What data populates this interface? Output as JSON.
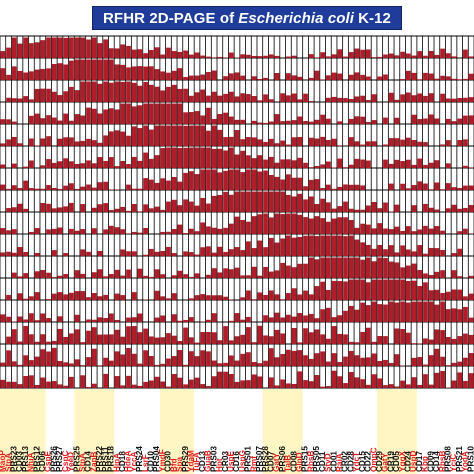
{
  "header": {
    "title_prefix": "RFHR 2D-PAGE of",
    "title_species": "Escherichia coli",
    "title_suffix": "K-12"
  },
  "colors": {
    "bar_fill": "#b01c28",
    "cell_background": "#ffffff",
    "frame": "#000000",
    "label_red": "#e01c1c",
    "label_black": "#111111",
    "highlight_yellow": "#fff6c4",
    "title_background": "#1f3c9a",
    "title_text": "#ffffff"
  },
  "chart_data": {
    "type": "bar",
    "layout": "grid of single-bar panels (rows x columns)",
    "rows": 16,
    "ylim": [
      0,
      1
    ],
    "grid": true,
    "columns": [
      {
        "label": "MaoP",
        "color": "red"
      },
      {
        "label": "StpA",
        "color": "red"
      },
      {
        "label": "PRS23",
        "color": "black"
      },
      {
        "label": "CD03",
        "color": "black"
      },
      {
        "label": "PRS13",
        "color": "black"
      },
      {
        "label": "NfuA",
        "color": "red"
      },
      {
        "label": "PRS12",
        "color": "black"
      },
      {
        "label": "CD06",
        "color": "black"
      },
      {
        "label": "CspE",
        "color": "red"
      },
      {
        "label": "PRS26",
        "color": "black"
      },
      {
        "label": "PRS27",
        "color": "black"
      },
      {
        "label": "CspC",
        "color": "red"
      },
      {
        "label": "YeeD",
        "color": "red"
      },
      {
        "label": "PRS25",
        "color": "black"
      },
      {
        "label": "StpA",
        "color": "red"
      },
      {
        "label": "CD14",
        "color": "black"
      },
      {
        "label": "ZapB",
        "color": "red"
      },
      {
        "label": "PRS22",
        "color": "black"
      },
      {
        "label": "PRS11",
        "color": "black"
      },
      {
        "label": "PRS18",
        "color": "black"
      },
      {
        "label": "HipA",
        "color": "red"
      },
      {
        "label": "CD18",
        "color": "black"
      },
      {
        "label": "HdeA",
        "color": "red"
      },
      {
        "label": "YccA",
        "color": "red"
      },
      {
        "label": "PRS24",
        "color": "black"
      },
      {
        "label": "LsrF",
        "color": "red"
      },
      {
        "label": "CD10",
        "color": "black"
      },
      {
        "label": "PRS04",
        "color": "black"
      },
      {
        "label": "YmdF",
        "color": "red"
      },
      {
        "label": "CD30",
        "color": "black"
      },
      {
        "label": "Bfd",
        "color": "red"
      },
      {
        "label": "Spa",
        "color": "red"
      },
      {
        "label": "PRS29",
        "color": "black"
      },
      {
        "label": "YdaM",
        "color": "red"
      },
      {
        "label": "TuFA",
        "color": "red"
      },
      {
        "label": "CD13",
        "color": "black"
      },
      {
        "label": "GuaB",
        "color": "red"
      },
      {
        "label": "PRS03",
        "color": "black"
      },
      {
        "label": "Hpt",
        "color": "red"
      },
      {
        "label": "CR03",
        "color": "black"
      },
      {
        "label": "UspE",
        "color": "red"
      },
      {
        "label": "CD16",
        "color": "black"
      },
      {
        "label": "UspG",
        "color": "red"
      },
      {
        "label": "PRS01",
        "color": "black"
      },
      {
        "label": "Rmf",
        "color": "red"
      },
      {
        "label": "PRS07",
        "color": "black"
      },
      {
        "label": "PRS28",
        "color": "black"
      },
      {
        "label": "CD07",
        "color": "black"
      },
      {
        "label": "GatY",
        "color": "red"
      },
      {
        "label": "PRS06",
        "color": "black"
      },
      {
        "label": "TalB",
        "color": "red"
      },
      {
        "label": "CD08",
        "color": "black"
      },
      {
        "label": "GlpD",
        "color": "red"
      },
      {
        "label": "PRS15",
        "color": "black"
      },
      {
        "label": "RbsB",
        "color": "red"
      },
      {
        "label": "PRS05",
        "color": "black"
      },
      {
        "label": "CD11",
        "color": "black"
      },
      {
        "label": "StyD",
        "color": "red"
      },
      {
        "label": "CD01",
        "color": "black"
      },
      {
        "label": "RaiA",
        "color": "red"
      },
      {
        "label": "CR02",
        "color": "black"
      },
      {
        "label": "CD28",
        "color": "black"
      },
      {
        "label": "YdcT",
        "color": "red"
      },
      {
        "label": "CD15",
        "color": "black"
      },
      {
        "label": "CD22",
        "color": "black"
      },
      {
        "label": "OmpC",
        "color": "red"
      },
      {
        "label": "CD29",
        "color": "black"
      },
      {
        "label": "GatY",
        "color": "red"
      },
      {
        "label": "CR19",
        "color": "black"
      },
      {
        "label": "CD05",
        "color": "black"
      },
      {
        "label": "YggX",
        "color": "red"
      },
      {
        "label": "CD24",
        "color": "black"
      },
      {
        "label": "UspD",
        "color": "red"
      },
      {
        "label": "CD17",
        "color": "black"
      },
      {
        "label": "Kbp",
        "color": "red"
      },
      {
        "label": "CD09",
        "color": "black"
      },
      {
        "label": "CD14",
        "color": "black"
      },
      {
        "label": "RbsB",
        "color": "red"
      },
      {
        "label": "PRS08",
        "color": "black"
      },
      {
        "label": "YciC",
        "color": "red"
      },
      {
        "label": "PRS21",
        "color": "black"
      },
      {
        "label": "YodA",
        "color": "red"
      },
      {
        "label": "PRS10",
        "color": "black"
      }
    ],
    "highlighted_columns": [
      {
        "from": 0,
        "to": 7
      },
      {
        "from": 13,
        "to": 19
      },
      {
        "from": 28,
        "to": 33
      },
      {
        "from": 46,
        "to": 52
      },
      {
        "from": 66,
        "to": 72
      }
    ]
  }
}
